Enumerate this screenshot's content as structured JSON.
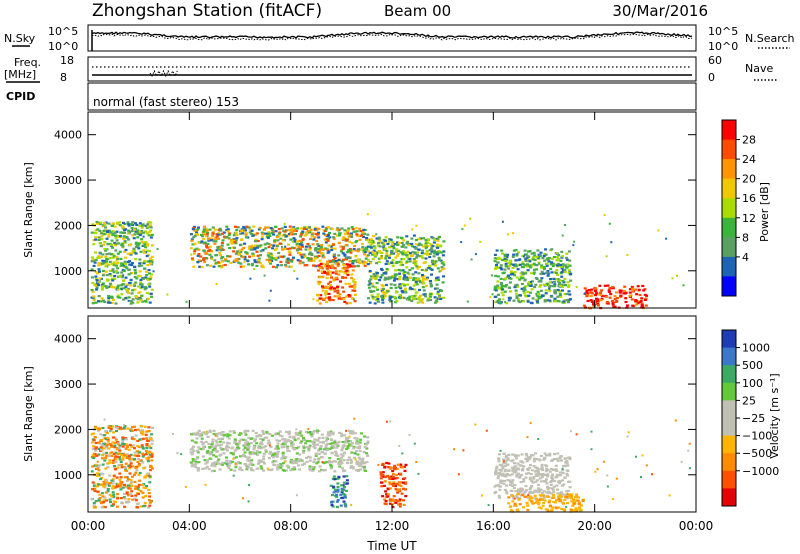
{
  "header": {
    "station_title": "Zhongshan Station (fitACF)",
    "beam": "Beam 00",
    "date": "30/Mar/2016"
  },
  "top_panels": {
    "nsky_label": "N.Sky",
    "nsearch_label": "N.Search",
    "nsky_ticks": [
      "10^5",
      "10^0"
    ],
    "nsearch_ticks": [
      "10^5",
      "10^0"
    ],
    "freq_label": "Freq.",
    "freq_unit": "[MHz]",
    "freq_ticks": [
      "18",
      "8"
    ],
    "nave_label": "Nave",
    "nave_ticks": [
      "60",
      "0"
    ],
    "cpid_label": "CPID",
    "cpid_value": "normal (fast stereo) 153"
  },
  "chart_data": [
    {
      "type": "heatmap",
      "quantity": "Power",
      "ylabel": "Slant Range [km]",
      "yticks": [
        "4000",
        "3000",
        "2000",
        "1000"
      ],
      "ylim": [
        180,
        4500
      ],
      "xlim_hours": [
        0,
        24
      ],
      "colorbar_label": "Power [dB]",
      "colorbar_ticks": [
        "28",
        "24",
        "20",
        "16",
        "12",
        "8",
        "4"
      ],
      "colorbar_colors": [
        "#ff0000",
        "#ff4b00",
        "#ff9600",
        "#f0c800",
        "#aadc00",
        "#3cb43c",
        "#5aa064",
        "#1e64b4",
        "#0000ff"
      ],
      "echo_regions": [
        {
          "t_start": 0.1,
          "t_end": 2.5,
          "r_start": 300,
          "r_end": 2100,
          "level": "12-20"
        },
        {
          "t_start": 4.0,
          "t_end": 11.0,
          "r_start": 1100,
          "r_end": 2000,
          "level": "16-28"
        },
        {
          "t_start": 9.0,
          "t_end": 10.5,
          "r_start": 300,
          "r_end": 1200,
          "level": "20-28"
        },
        {
          "t_start": 11.0,
          "t_end": 14.0,
          "r_start": 300,
          "r_end": 1800,
          "level": "8-20"
        },
        {
          "t_start": 16.0,
          "t_end": 19.0,
          "r_start": 300,
          "r_end": 1500,
          "level": "8-20"
        },
        {
          "t_start": 19.5,
          "t_end": 22.0,
          "r_start": 200,
          "r_end": 700,
          "level": "20-28"
        }
      ]
    },
    {
      "type": "heatmap",
      "quantity": "Velocity",
      "ylabel": "Slant Range [km]",
      "yticks": [
        "4000",
        "3000",
        "2000",
        "1000"
      ],
      "ylim": [
        180,
        4500
      ],
      "xlim_hours": [
        0,
        24
      ],
      "colorbar_label": "Velocity [m s⁻¹]",
      "colorbar_ticks": [
        "1000",
        "500",
        "100",
        "25",
        "−25",
        "−100",
        "−500",
        "−1000"
      ],
      "colorbar_colors": [
        "#1e3cb4",
        "#3c78c8",
        "#3caa64",
        "#64c83c",
        "#c0c0b4",
        "#c0c0b4",
        "#ffb400",
        "#ff8c00",
        "#ff5000",
        "#e60000"
      ],
      "echo_regions": [
        {
          "t_start": 0.1,
          "t_end": 2.5,
          "r_start": 300,
          "r_end": 2100,
          "level": "-100 to -500"
        },
        {
          "t_start": 4.0,
          "t_end": 11.0,
          "r_start": 1100,
          "r_end": 2000,
          "level": "-25 to 25"
        },
        {
          "t_start": 9.5,
          "t_end": 10.2,
          "r_start": 300,
          "r_end": 1000,
          "level": "500 to 1000"
        },
        {
          "t_start": 11.5,
          "t_end": 12.5,
          "r_start": 300,
          "r_end": 1300,
          "level": "-500 to -1000"
        },
        {
          "t_start": 16.0,
          "t_end": 19.0,
          "r_start": 500,
          "r_end": 1500,
          "level": "-25 to 25"
        },
        {
          "t_start": 16.5,
          "t_end": 19.5,
          "r_start": 200,
          "r_end": 600,
          "level": "-100 to -500"
        }
      ]
    }
  ],
  "xaxis": {
    "ticks": [
      "00:00",
      "04:00",
      "08:00",
      "12:00",
      "16:00",
      "20:00",
      "00:00"
    ],
    "label": "Time UT"
  }
}
